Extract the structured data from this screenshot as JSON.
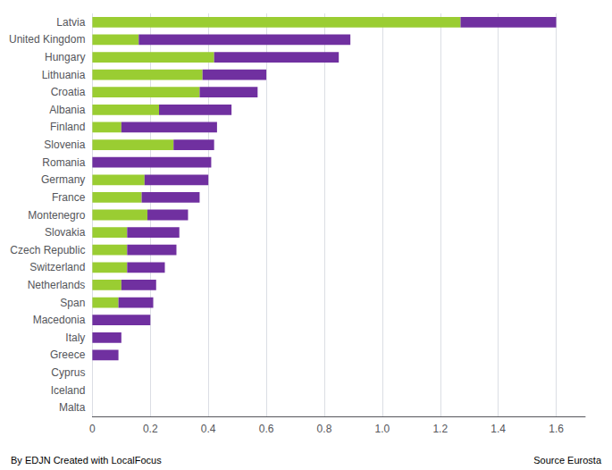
{
  "chart_data": {
    "type": "bar",
    "orientation": "horizontal",
    "stacked": true,
    "categories": [
      "Latvia",
      "United Kingdom",
      "Hungary",
      "Lithuania",
      "Croatia",
      "Albania",
      "Finland",
      "Slovenia",
      "Romania",
      "Germany",
      "France",
      "Montenegro",
      "Slovakia",
      "Czech Republic",
      "Switzerland",
      "Netherlands",
      "Span",
      "Macedonia",
      "Italy",
      "Greece",
      "Cyprus",
      "Iceland",
      "Malta"
    ],
    "series": [
      {
        "color": "#9acd32",
        "values": [
          1.27,
          0.16,
          0.42,
          0.38,
          0.37,
          0.23,
          0.1,
          0.28,
          0.0,
          0.18,
          0.17,
          0.19,
          0.12,
          0.12,
          0.12,
          0.1,
          0.09,
          0.0,
          0.0,
          0.0,
          0.0,
          0.0,
          0.0
        ]
      },
      {
        "color": "#7030a0",
        "values": [
          0.33,
          0.73,
          0.43,
          0.22,
          0.2,
          0.25,
          0.33,
          0.14,
          0.41,
          0.22,
          0.2,
          0.14,
          0.18,
          0.17,
          0.13,
          0.12,
          0.12,
          0.2,
          0.1,
          0.09,
          0.0,
          0.0,
          0.0
        ]
      }
    ],
    "xlim": [
      0,
      1.7
    ],
    "xticks": [
      0,
      0.2,
      0.4,
      0.6,
      0.8,
      {
        "value": 1.0,
        "label": "1.0"
      },
      1.2,
      1.4,
      1.6
    ],
    "grid": true,
    "annotations": [
      "By EDJN Created with LocalFocus",
      "Source Eurosta"
    ]
  }
}
